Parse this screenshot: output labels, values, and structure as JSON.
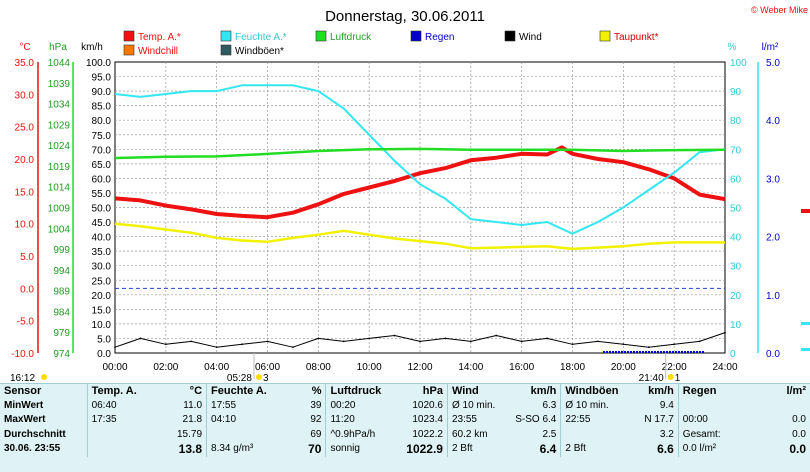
{
  "title": "Donnerstag, 30.06.2011",
  "watermark": "© Weber Mike",
  "colors": {
    "temp": "#ee1111",
    "humidity": "#33e6f0",
    "pressure": "#22dd22",
    "wind": "#000000",
    "dewpoint": "#f2f200",
    "rain": "#0000cc",
    "grid_dash": "#2244cc"
  },
  "legend": [
    {
      "label": "Temp. A.*",
      "color": "#ee1111"
    },
    {
      "label": "Feuchte A.*",
      "color": "#33e6f0"
    },
    {
      "label": "Luftdruck",
      "color": "#22dd22"
    },
    {
      "label": "Regen",
      "color": "#0000cc"
    },
    {
      "label": "Wind",
      "color": "#000000"
    },
    {
      "label": "Taupunkt*",
      "color": "#f2f200"
    },
    {
      "label": "Windchill",
      "color": "#ff7700"
    },
    {
      "label": "Windböen*",
      "color": "#2e5a60"
    }
  ],
  "axis_units": {
    "temp": "°C",
    "pressure": "hPa",
    "wind": "km/h",
    "humidity": "%",
    "rain": "l/m²"
  },
  "sun_markers": {
    "sunrise_time": "05:28",
    "sunrise_mark": "3",
    "sunset_time": "21:40",
    "sunset_mark": "1",
    "now_time": "16:12"
  },
  "chart_data": {
    "type": "line",
    "x_unit": "time of day",
    "x_ticks": [
      "00:00",
      "02:00",
      "04:00",
      "06:00",
      "08:00",
      "10:00",
      "12:00",
      "14:00",
      "16:00",
      "18:00",
      "20:00",
      "22:00",
      "24:00"
    ],
    "xlim": [
      0,
      24
    ],
    "axes": {
      "temp": {
        "ylim": [
          -10,
          35
        ],
        "ticks": [
          "35.0",
          "30.0",
          "25.0",
          "20.0",
          "15.0",
          "10.0",
          "5.0",
          "0.0",
          "-5.0",
          "-10.0"
        ]
      },
      "pressure": {
        "ylim": [
          974,
          1044
        ],
        "ticks": [
          "1044",
          "1039",
          "1034",
          "1029",
          "1024",
          "1019",
          "1014",
          "1009",
          "1004",
          "999",
          "994",
          "989",
          "984",
          "979",
          "974"
        ]
      },
      "wind": {
        "ylim": [
          0,
          100
        ],
        "ticks": [
          "100.0",
          "95.0",
          "90.0",
          "85.0",
          "80.0",
          "75.0",
          "70.0",
          "65.0",
          "60.0",
          "55.0",
          "50.0",
          "45.0",
          "40.0",
          "35.0",
          "30.0",
          "25.0",
          "20.0",
          "15.0",
          "10.0",
          "5.0",
          "0.0"
        ]
      },
      "humidity": {
        "ylim": [
          0,
          100
        ],
        "ticks": [
          "100",
          "90",
          "80",
          "70",
          "60",
          "50",
          "40",
          "30",
          "20",
          "10",
          "0"
        ]
      },
      "rain": {
        "ylim": [
          0,
          5
        ],
        "ticks": [
          "5.0",
          "4.0",
          "3.0",
          "2.0",
          "1.0",
          "0.0"
        ]
      }
    },
    "series": [
      {
        "name": "Temp. A.*",
        "axis": "temp",
        "x": [
          0,
          1,
          2,
          3,
          4,
          5,
          6,
          7,
          8,
          9,
          10,
          11,
          12,
          13,
          14,
          15,
          16,
          17,
          17.58,
          18,
          19,
          20,
          21,
          22,
          23,
          24
        ],
        "y": [
          13.9,
          13.6,
          12.8,
          12.2,
          11.5,
          11.2,
          11.0,
          11.7,
          13.0,
          14.6,
          15.6,
          16.6,
          17.8,
          18.6,
          19.8,
          20.2,
          20.8,
          20.7,
          21.8,
          20.8,
          20.0,
          19.5,
          18.4,
          17.0,
          14.5,
          13.8
        ]
      },
      {
        "name": "Feuchte A.*",
        "axis": "humidity",
        "x": [
          0,
          1,
          2,
          3,
          4,
          5,
          6,
          7,
          8,
          9,
          10,
          11,
          12,
          13,
          14,
          15,
          16,
          17,
          18,
          19,
          20,
          21,
          22,
          23,
          24
        ],
        "y": [
          89,
          88,
          89,
          90,
          90,
          92,
          92,
          92,
          90,
          84,
          75,
          66,
          58,
          53,
          46,
          45,
          44,
          45,
          41,
          45,
          50,
          56,
          62,
          69,
          70
        ]
      },
      {
        "name": "Luftdruck",
        "axis": "pressure",
        "x": [
          0,
          2,
          4,
          6,
          8,
          10,
          12,
          14,
          16,
          18,
          20,
          22,
          24
        ],
        "y": [
          1020.9,
          1021.2,
          1021.3,
          1021.9,
          1022.6,
          1023.0,
          1023.1,
          1022.9,
          1022.9,
          1022.9,
          1022.6,
          1022.8,
          1022.9
        ]
      },
      {
        "name": "Taupunkt*",
        "axis": "temp",
        "x": [
          0,
          1,
          2,
          3,
          4,
          5,
          6,
          7,
          8,
          9,
          10,
          11,
          12,
          13,
          14,
          15,
          16,
          17,
          18,
          19,
          20,
          21,
          22,
          23,
          24
        ],
        "y": [
          10.0,
          9.6,
          9.1,
          8.6,
          7.8,
          7.4,
          7.2,
          7.8,
          8.3,
          8.9,
          8.3,
          7.7,
          7.3,
          6.9,
          6.2,
          6.3,
          6.4,
          6.5,
          6.1,
          6.3,
          6.5,
          6.9,
          7.1,
          7.1,
          7.1
        ]
      },
      {
        "name": "Wind",
        "axis": "wind",
        "x": [
          0,
          1,
          2,
          3,
          4,
          5,
          6,
          7,
          8,
          9,
          10,
          11,
          12,
          13,
          14,
          15,
          16,
          17,
          18,
          19,
          20,
          21,
          22,
          23,
          24
        ],
        "y": [
          2,
          5,
          3,
          4,
          2,
          3,
          4,
          2,
          5,
          4,
          5,
          6,
          4,
          5,
          4,
          6,
          4,
          5,
          3,
          4,
          3,
          2,
          3,
          4,
          7
        ]
      }
    ]
  },
  "stats": {
    "headers": [
      "Sensor",
      "Temp. A.",
      "°C",
      "Feuchte A.",
      "%",
      "Luftdruck",
      "hPa",
      "Wind",
      "km/h",
      "Windböen",
      "km/h",
      "Regen",
      "l/m²"
    ],
    "rows": [
      {
        "label": "MinWert",
        "temp_time": "06:40",
        "temp_val": "11.0",
        "hum_time": "17:55",
        "hum_val": "39",
        "pres_time": "00:20",
        "pres_val": "1020.6",
        "wind_desc": "Ø 10 min.",
        "wind_val": "6.3",
        "gust_desc": "Ø 10 min.",
        "gust_val": "9.4",
        "rain_desc": "",
        "rain_val": ""
      },
      {
        "label": "MaxWert",
        "temp_time": "17:35",
        "temp_val": "21.8",
        "hum_time": "04:10",
        "hum_val": "92",
        "pres_time": "11:20",
        "pres_val": "1023.4",
        "wind_desc": "23:55",
        "wind_val": "S-SO 6.4",
        "gust_desc": "22:55",
        "gust_val": "N 17.7",
        "rain_desc": "00:00",
        "rain_val": "0.0"
      },
      {
        "label": "Durchschnitt",
        "temp_time": "",
        "temp_val": "15.79",
        "hum_time": "",
        "hum_val": "69",
        "pres_time": "^0.9hPa/h",
        "pres_val": "1022.2",
        "wind_desc": "60.2 km",
        "wind_val": "2.5",
        "gust_desc": "",
        "gust_val": "3.2",
        "rain_desc": "Gesamt:",
        "rain_val": "0.0"
      },
      {
        "label": "30.06. 23:55",
        "temp_time": "",
        "temp_val": "13.8",
        "hum_time": "8.34 g/m³",
        "hum_val": "70",
        "pres_time": "sonnig",
        "pres_val": "1022.9",
        "wind_desc": "2 Bft",
        "wind_val": "6.4",
        "gust_desc": "2 Bft",
        "gust_val": "6.6",
        "rain_desc": "0.0 l/m²",
        "rain_val": "0.0"
      }
    ]
  }
}
